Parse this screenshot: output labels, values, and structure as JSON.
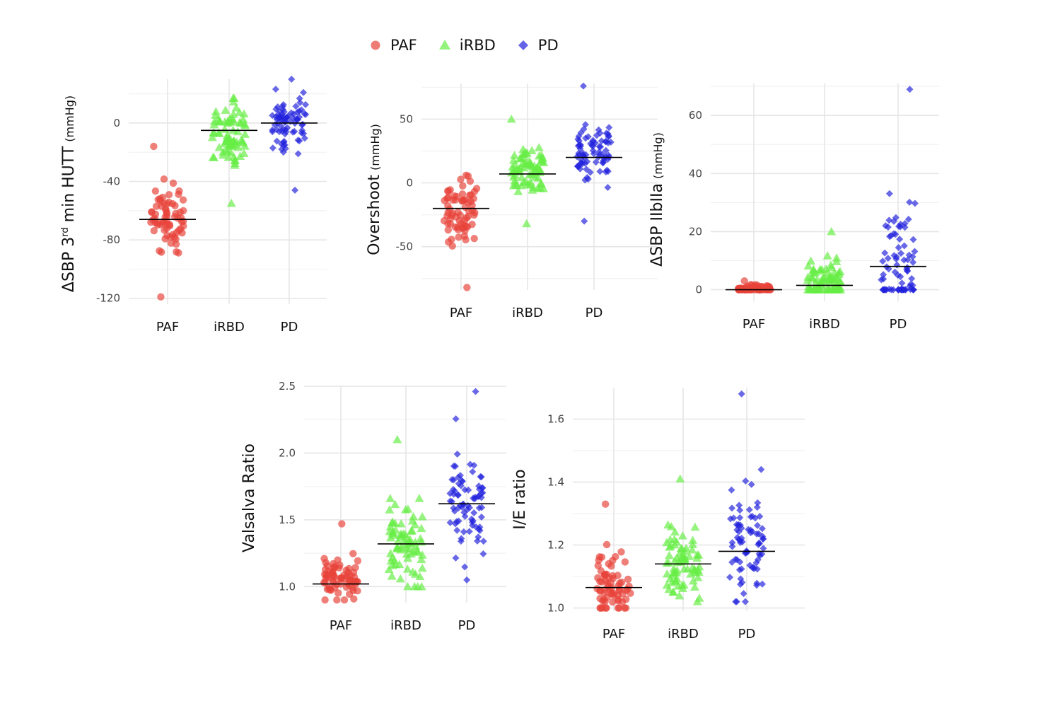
{
  "legend": {
    "title": "",
    "items": [
      {
        "label": "PAF",
        "color": "#E8433A",
        "shape": "circle"
      },
      {
        "label": "iRBD",
        "color": "#66EE44",
        "shape": "triangle"
      },
      {
        "label": "PD",
        "color": "#2222DD",
        "shape": "diamond"
      }
    ]
  },
  "chart_data": [
    {
      "type": "scatter",
      "title": "",
      "ylabel": "ΔSBP 3rd min HUTT (mmHg)",
      "ylabel_parts": {
        "pre": "ΔSBP 3",
        "sup": "rd",
        "post": " min HUTT",
        "unit": "(mmHg)"
      },
      "categories": [
        "PAF",
        "iRBD",
        "PD"
      ],
      "ylim": [
        -124,
        30
      ],
      "yticks": [
        0,
        -40,
        -80,
        -120
      ],
      "ytick_labels": [
        "0",
        "-40",
        "-80",
        "-120"
      ],
      "grid": true,
      "series": [
        {
          "name": "PAF",
          "mean": -66,
          "min": -119,
          "max": -16,
          "n": 70,
          "center": -66
        },
        {
          "name": "iRBD",
          "mean": -5,
          "min": -55,
          "max": 17,
          "n": 75,
          "center": -8
        },
        {
          "name": "PD",
          "mean": 0,
          "min": -46,
          "max": 30,
          "n": 80,
          "center": 0
        }
      ]
    },
    {
      "type": "scatter",
      "title": "",
      "ylabel": "Overshoot (mmHg)",
      "ylabel_parts": {
        "pre": "Overshoot",
        "sup": "",
        "post": "",
        "unit": "(mmHg)"
      },
      "categories": [
        "PAF",
        "iRBD",
        "PD"
      ],
      "ylim": [
        -84,
        78
      ],
      "yticks": [
        50,
        0,
        -50
      ],
      "ytick_labels": [
        "50",
        "0",
        "-50"
      ],
      "grid": true,
      "series": [
        {
          "name": "PAF",
          "mean": -20,
          "min": -82,
          "max": 6,
          "n": 70,
          "center": -22
        },
        {
          "name": "iRBD",
          "mean": 7,
          "min": -32,
          "max": 50,
          "n": 75,
          "center": 8
        },
        {
          "name": "PD",
          "mean": 20,
          "min": -30,
          "max": 76,
          "n": 80,
          "center": 22
        }
      ]
    },
    {
      "type": "scatter",
      "title": "",
      "ylabel": "ΔSBP IIbIIa (mmHg)",
      "ylabel_parts": {
        "pre": "ΔSBP IIbIIa",
        "sup": "",
        "post": "",
        "unit": "(mmHg)"
      },
      "categories": [
        "PAF",
        "iRBD",
        "PD"
      ],
      "ylim": [
        -4,
        71
      ],
      "yticks": [
        0,
        20,
        40,
        60
      ],
      "ytick_labels": [
        "0",
        "20",
        "40",
        "60"
      ],
      "grid": true,
      "series": [
        {
          "name": "PAF",
          "mean": 0,
          "min": 0,
          "max": 3,
          "n": 70,
          "center": 0.3
        },
        {
          "name": "iRBD",
          "mean": 1.5,
          "min": 0,
          "max": 20,
          "n": 75,
          "center": 3
        },
        {
          "name": "PD",
          "mean": 8,
          "min": 0,
          "max": 69,
          "n": 80,
          "center": 9
        }
      ]
    },
    {
      "type": "scatter",
      "title": "",
      "ylabel": "Valsalva Ratio",
      "ylabel_parts": {
        "pre": "Valsalva Ratio",
        "sup": "",
        "post": "",
        "unit": ""
      },
      "categories": [
        "PAF",
        "iRBD",
        "PD"
      ],
      "ylim": [
        0.88,
        2.5
      ],
      "yticks": [
        1.0,
        1.5,
        2.0,
        2.5
      ],
      "ytick_labels": [
        "1.0",
        "1.5",
        "2.0",
        "2.5"
      ],
      "grid": true,
      "series": [
        {
          "name": "PAF",
          "mean": 1.02,
          "min": 0.9,
          "max": 1.47,
          "n": 70,
          "center": 1.06
        },
        {
          "name": "iRBD",
          "mean": 1.32,
          "min": 1.0,
          "max": 2.1,
          "n": 75,
          "center": 1.33
        },
        {
          "name": "PD",
          "mean": 1.62,
          "min": 1.05,
          "max": 2.46,
          "n": 80,
          "center": 1.62
        }
      ]
    },
    {
      "type": "scatter",
      "title": "",
      "ylabel": "I/E ratio",
      "ylabel_parts": {
        "pre": "I/E ratio",
        "sup": "",
        "post": "",
        "unit": ""
      },
      "categories": [
        "PAF",
        "iRBD",
        "PD"
      ],
      "ylim": [
        0.99,
        1.7
      ],
      "yticks": [
        1.0,
        1.2,
        1.4,
        1.6
      ],
      "ytick_labels": [
        "1.0",
        "1.2",
        "1.4",
        "1.6"
      ],
      "grid": true,
      "series": [
        {
          "name": "PAF",
          "mean": 1.065,
          "min": 1.0,
          "max": 1.33,
          "n": 70,
          "center": 1.07
        },
        {
          "name": "iRBD",
          "mean": 1.14,
          "min": 1.02,
          "max": 1.41,
          "n": 75,
          "center": 1.15
        },
        {
          "name": "PD",
          "mean": 1.18,
          "min": 1.02,
          "max": 1.68,
          "n": 80,
          "center": 1.19
        }
      ]
    }
  ]
}
